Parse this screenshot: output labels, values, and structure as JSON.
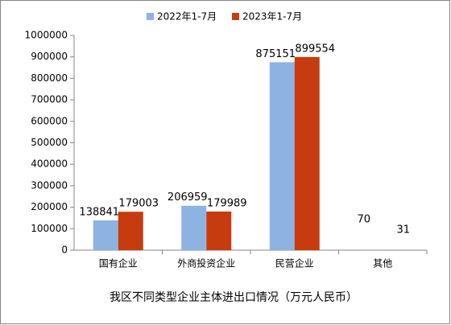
{
  "chart_data": {
    "type": "bar",
    "title": "我区不同类型企业主体进出口情况（万元人民币）",
    "categories": [
      "国有企业",
      "外商投资企业",
      "民营企业",
      "其他"
    ],
    "series": [
      {
        "name": "2022年1-7月",
        "color": "#8db3e2",
        "values": [
          138841,
          206959,
          875151,
          70
        ]
      },
      {
        "name": "2023年1-7月",
        "color": "#c63c0e",
        "values": [
          179003,
          179989,
          899554,
          31
        ]
      }
    ],
    "ylim": [
      0,
      1000000
    ],
    "yticks": [
      0,
      100000,
      200000,
      300000,
      400000,
      500000,
      600000,
      700000,
      800000,
      900000,
      1000000
    ],
    "grid": false,
    "legend": "top"
  }
}
